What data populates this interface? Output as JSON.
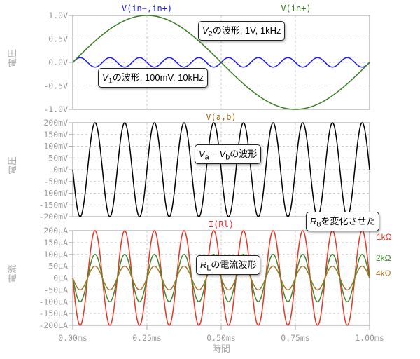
{
  "chart_data": [
    {
      "type": "line",
      "ylabel": "電圧",
      "xlim": [
        0,
        1
      ],
      "ylim": [
        -1,
        1
      ],
      "grid": true,
      "yticks": [
        "1.0V",
        "0.5V",
        "0.0V",
        "-0.5V",
        "-1.0V"
      ],
      "series": [
        {
          "name": "V(in−,in+)",
          "color": "#1a1aff",
          "amplitude": 0.1,
          "frequency_kHz": 10,
          "phase": "sin"
        },
        {
          "name": "V(in+)",
          "color": "#3a7d22",
          "amplitude": 1.0,
          "frequency_kHz": 1,
          "phase": "sin"
        }
      ],
      "annotations": [
        {
          "main": "V",
          "sub": "2",
          "text": "の波形, 1V, 1kHz"
        },
        {
          "main": "V",
          "sub": "1",
          "text": "の波形, 100mV, 10kHz"
        }
      ]
    },
    {
      "type": "line",
      "ylabel": "電圧",
      "xlim": [
        0,
        1
      ],
      "ylim": [
        -200,
        200
      ],
      "grid": true,
      "yticks": [
        "200mV",
        "150mV",
        "100mV",
        "50mV",
        "0mV",
        "-50mV",
        "-100mV",
        "-150mV",
        "-200mV"
      ],
      "series": [
        {
          "name": "V(a,b)",
          "title_color": "#a0701a",
          "color": "#000000",
          "amplitude": 200,
          "frequency_kHz": 10,
          "phase": "-sin"
        }
      ],
      "annotations": [
        {
          "a": "V",
          "asub": "a",
          "mid": " − ",
          "b": "V",
          "bsub": "b",
          "text": "の波形"
        }
      ]
    },
    {
      "type": "line",
      "ylabel": "電流",
      "xlabel": "時間",
      "xlim": [
        0,
        1
      ],
      "ylim": [
        -200,
        200
      ],
      "grid": true,
      "xticks": [
        "0.00ms",
        "0.25ms",
        "0.50ms",
        "0.75ms",
        "1.00ms"
      ],
      "yticks": [
        "200µA",
        "150µA",
        "100µA",
        "50µA",
        "0µA",
        "-50µA",
        "-100µA",
        "-150µA",
        "-200µA"
      ],
      "title": "I(Rl)",
      "title_color": "#ee2222",
      "series": [
        {
          "name": "1kΩ",
          "color": "#ee3322",
          "amplitude": 200,
          "frequency_kHz": 10,
          "phase": "-sin"
        },
        {
          "name": "2kΩ",
          "color": "#3a8a2a",
          "amplitude": 100,
          "frequency_kHz": 10,
          "phase": "-sin"
        },
        {
          "name": "4kΩ",
          "color": "#a8742a",
          "amplitude": 50,
          "frequency_kHz": 10,
          "phase": "-sin"
        }
      ],
      "annotations": [
        {
          "main": "R",
          "sub": "8",
          "text": "を変化させた"
        },
        {
          "main": "R",
          "sub": "L",
          "text": "の電流波形"
        }
      ]
    }
  ]
}
